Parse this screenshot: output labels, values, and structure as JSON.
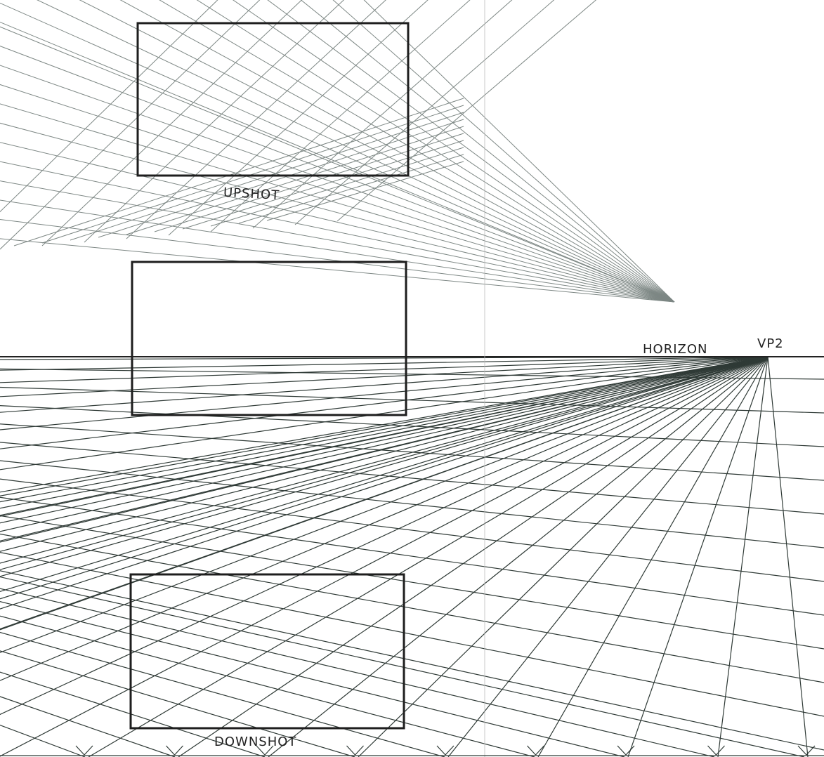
{
  "labels": {
    "upshot": "UPSHOT",
    "horizon": "HORIZON",
    "vp2": "VP2",
    "downshot": "DOWNSHOT"
  }
}
